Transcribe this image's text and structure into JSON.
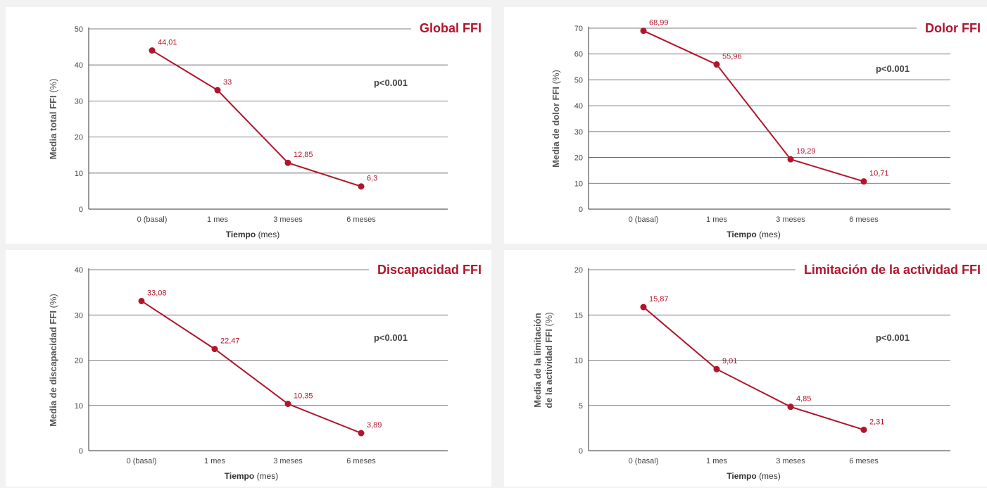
{
  "colors": {
    "series": "#b0152b",
    "background": "#f2f2f2",
    "panel": "#ffffff"
  },
  "chart_data": [
    {
      "type": "line",
      "title": "Global FFI",
      "ylabel": "Media total FFI",
      "ylabel_unit": "(%)",
      "xlabel": "Tiempo",
      "xlabel_unit": "(mes)",
      "categories": [
        "0 (basal)",
        "1 mes",
        "3 meses",
        "6 meses"
      ],
      "values": [
        44.01,
        33,
        12.85,
        6.3
      ],
      "value_labels": [
        "44,01",
        "33",
        "12,85",
        "6,3"
      ],
      "ylim": [
        0,
        50
      ],
      "yticks": [
        0,
        10,
        20,
        30,
        40,
        50
      ],
      "annotation": "p<0.001",
      "grid": true
    },
    {
      "type": "line",
      "title": "Dolor FFI",
      "ylabel": "Media de dolor FFI",
      "ylabel_unit": "(%)",
      "xlabel": "Tiempo",
      "xlabel_unit": "(mes)",
      "categories": [
        "0 (basal)",
        "1 mes",
        "3 meses",
        "6 meses"
      ],
      "values": [
        68.99,
        55.96,
        19.29,
        10.71
      ],
      "value_labels": [
        "68,99",
        "55,96",
        "19,29",
        "10,71"
      ],
      "ylim": [
        0,
        70
      ],
      "yticks": [
        0,
        10,
        20,
        30,
        40,
        50,
        60,
        70
      ],
      "annotation": "p<0.001",
      "grid": true
    },
    {
      "type": "line",
      "title": "Discapacidad FFI",
      "ylabel": "Media de discapacidad FFI",
      "ylabel_unit": "(%)",
      "xlabel": "Tiempo",
      "xlabel_unit": "(mes)",
      "categories": [
        "0 (basal)",
        "1 mes",
        "3 meses",
        "6 meses"
      ],
      "values": [
        33.08,
        22.47,
        10.35,
        3.89
      ],
      "value_labels": [
        "33,08",
        "22,47",
        "10,35",
        "3,89"
      ],
      "ylim": [
        0,
        40
      ],
      "yticks": [
        0,
        10,
        20,
        30,
        40
      ],
      "annotation": "p<0.001",
      "grid": true
    },
    {
      "type": "line",
      "title": "Limitación de la  actividad FFI",
      "ylabel_lines": [
        "Media de la limitación",
        "de la actividad FFI"
      ],
      "ylabel_unit": "(%)",
      "xlabel": "Tiempo",
      "xlabel_unit": "(mes)",
      "categories": [
        "0 (basal)",
        "1 mes",
        "3 meses",
        "6 meses"
      ],
      "values": [
        15.87,
        9.01,
        4.85,
        2.31
      ],
      "value_labels": [
        "15,87",
        "9,01",
        "4,85",
        "2,31"
      ],
      "ylim": [
        0,
        20
      ],
      "yticks": [
        0,
        5,
        10,
        15,
        20
      ],
      "annotation": "p<0.001",
      "grid": true
    }
  ]
}
